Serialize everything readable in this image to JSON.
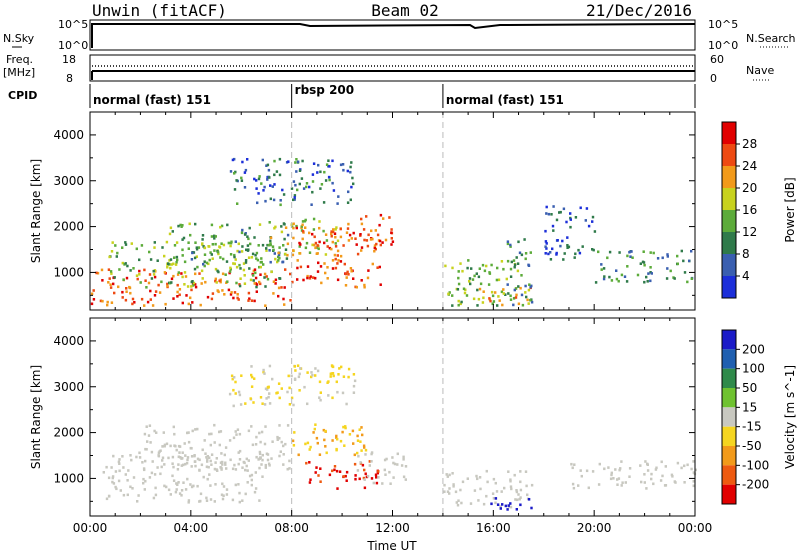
{
  "header": {
    "station": "Unwin (fitACF)",
    "beam": "Beam 02",
    "date": "21/Dec/2016"
  },
  "status_panels": {
    "nsky_label": "N.Sky",
    "nsky_ticks": [
      "10^5",
      "10^0"
    ],
    "nsearch_label": "N.Search",
    "freq_label": "Freq.",
    "freq_unit": "[MHz]",
    "freq_ticks": [
      "18",
      "8"
    ],
    "nave_label": "Nave",
    "nave_ticks": [
      "60",
      "0"
    ],
    "cpid_label": "CPID",
    "cpid_segments": [
      {
        "label": "normal (fast) 151",
        "start": "00:00"
      },
      {
        "label": "rbsp 200",
        "start": "08:00"
      },
      {
        "label": "normal (fast) 151",
        "start": "14:00"
      }
    ]
  },
  "chart_data": [
    {
      "type": "heatmap",
      "panel": "power",
      "xlabel": "",
      "ylabel": "Slant Range [km]",
      "x_range": [
        "00:00",
        "24:00"
      ],
      "ylim": [
        180,
        4500
      ],
      "y_ticks": [
        1000,
        2000,
        3000,
        4000
      ],
      "colorbar": {
        "label": "Power [dB]",
        "ticks": [
          4,
          8,
          12,
          16,
          20,
          24,
          28
        ],
        "range": [
          0,
          32
        ],
        "colors": [
          "#1c2fd9",
          "#3a5fb0",
          "#2f7a4a",
          "#5cab3a",
          "#c8d21e",
          "#f29a1a",
          "#ee4a12",
          "#e10000"
        ]
      },
      "scatter_regions": [
        {
          "t0": 0.0,
          "t1": 8.0,
          "r0": 300,
          "r1": 1100,
          "level": 26
        },
        {
          "t0": 0.5,
          "t1": 7.5,
          "r0": 700,
          "r1": 1700,
          "level": 14
        },
        {
          "t0": 3.0,
          "t1": 8.0,
          "r0": 1200,
          "r1": 2100,
          "level": 12
        },
        {
          "t0": 5.5,
          "t1": 10.5,
          "r0": 2500,
          "r1": 3500,
          "level": 8
        },
        {
          "t0": 7.0,
          "t1": 10.0,
          "r0": 1400,
          "r1": 2200,
          "level": 18
        },
        {
          "t0": 8.0,
          "t1": 11.5,
          "r0": 700,
          "r1": 2000,
          "level": 26
        },
        {
          "t0": 10.0,
          "t1": 12.0,
          "r0": 1600,
          "r1": 2300,
          "level": 28
        },
        {
          "t0": 14.0,
          "t1": 17.0,
          "r0": 300,
          "r1": 1300,
          "level": 14
        },
        {
          "t0": 15.0,
          "t1": 17.5,
          "r0": 250,
          "r1": 700,
          "level": 20
        },
        {
          "t0": 16.5,
          "t1": 17.5,
          "r0": 300,
          "r1": 1800,
          "level": 10
        },
        {
          "t0": 18.0,
          "t1": 20.0,
          "r0": 1300,
          "r1": 2500,
          "level": 6
        },
        {
          "t0": 20.0,
          "t1": 24.0,
          "r0": 800,
          "r1": 1500,
          "level": 10
        }
      ]
    },
    {
      "type": "heatmap",
      "panel": "velocity",
      "xlabel": "Time UT",
      "ylabel": "Slant Range [km]",
      "x_range": [
        "00:00",
        "24:00"
      ],
      "x_ticks": [
        "00:00",
        "04:00",
        "08:00",
        "12:00",
        "16:00",
        "20:00",
        "00:00"
      ],
      "ylim": [
        180,
        4500
      ],
      "y_ticks": [
        1000,
        2000,
        3000,
        4000
      ],
      "colorbar": {
        "label": "Velocity [m s^-1]",
        "ticks": [
          200,
          100,
          50,
          15,
          -15,
          -50,
          -100,
          -200
        ],
        "range": [
          -250,
          250
        ],
        "colors": [
          "#1b1bc8",
          "#1f5fb0",
          "#2f8a4a",
          "#6fc230",
          "#c8c8c0",
          "#f5d520",
          "#f29a1a",
          "#ee5a10",
          "#e10000"
        ]
      },
      "scatter_regions": [
        {
          "t0": 0.5,
          "t1": 7.0,
          "r0": 500,
          "r1": 1600,
          "level": 0
        },
        {
          "t0": 2.0,
          "t1": 8.0,
          "r0": 1200,
          "r1": 2200,
          "level": 0
        },
        {
          "t0": 8.0,
          "t1": 11.0,
          "r0": 1500,
          "r1": 2200,
          "level": -80
        },
        {
          "t0": 8.5,
          "t1": 11.5,
          "r0": 800,
          "r1": 1400,
          "level": -200
        },
        {
          "t0": 10.5,
          "t1": 12.5,
          "r0": 900,
          "r1": 1600,
          "level": 0
        },
        {
          "t0": 5.5,
          "t1": 10.5,
          "r0": 2600,
          "r1": 3500,
          "level": -30
        },
        {
          "t0": 14.0,
          "t1": 17.5,
          "r0": 400,
          "r1": 1200,
          "level": 0
        },
        {
          "t0": 15.5,
          "t1": 17.5,
          "r0": 300,
          "r1": 600,
          "level": 220
        },
        {
          "t0": 19.0,
          "t1": 24.0,
          "r0": 800,
          "r1": 1400,
          "level": 0
        }
      ]
    }
  ]
}
